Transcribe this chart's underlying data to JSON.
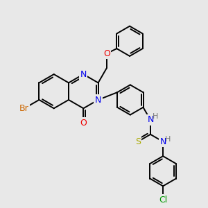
{
  "background_color": "#e8e8e8",
  "atom_colors": {
    "C": "#000000",
    "N": "#0000ee",
    "O": "#ee0000",
    "S": "#aaaa00",
    "Br": "#cc6600",
    "Cl": "#009900",
    "H": "#777777"
  },
  "figsize": [
    3.0,
    3.0
  ],
  "dpi": 100,
  "bond_lw": 1.4,
  "ring_r": 0.72,
  "bl": 0.82
}
